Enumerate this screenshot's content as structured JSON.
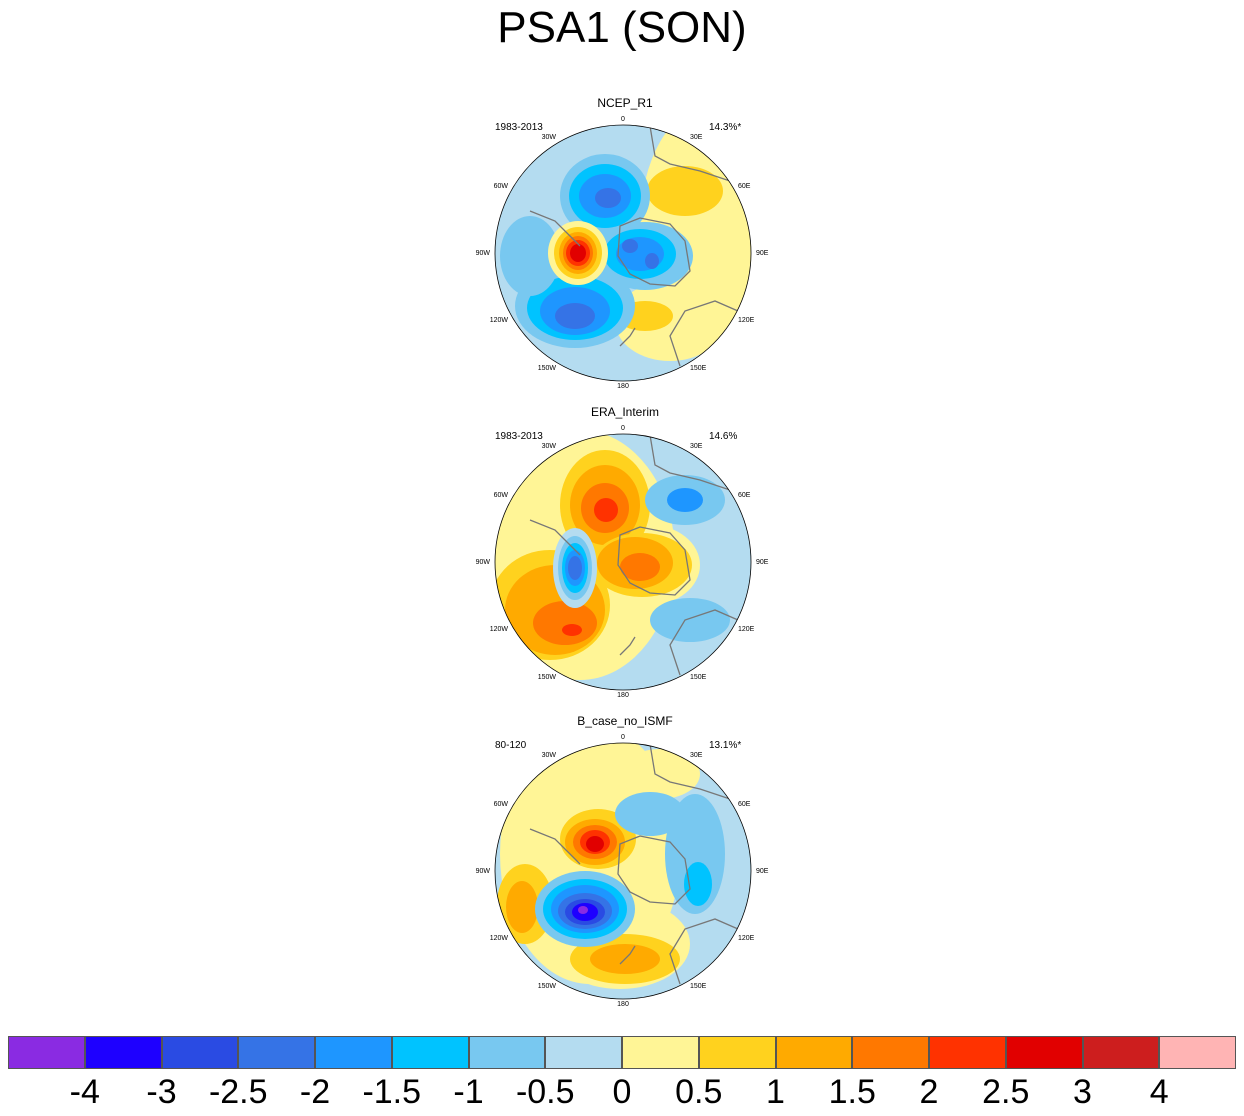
{
  "title": "PSA1 (SON)",
  "panels": [
    {
      "name": "NCEP_R1",
      "period": "1983-2013",
      "variance": "14.3%*"
    },
    {
      "name": "ERA_Interim",
      "period": "1983-2013",
      "variance": "14.6%"
    },
    {
      "name": "B_case_no_ISMF",
      "period": "80-120",
      "variance": "13.1%*"
    }
  ],
  "longitude_labels": {
    "top": "0",
    "lon_30e": "30E",
    "lon_60e": "60E",
    "lon_90e": "90E",
    "lon_120e": "120E",
    "lon_150e": "150E",
    "bottom": "180",
    "lon_150w": "150W",
    "lon_120w": "120W",
    "lon_90w": "90W",
    "lon_60w": "60W",
    "lon_30w": "30W"
  },
  "colorbar": {
    "colors": [
      "#8a2be2",
      "#1e00ff",
      "#2a4be3",
      "#3573e6",
      "#1e96ff",
      "#00c3ff",
      "#78c8f0",
      "#b4dcf0",
      "#fff596",
      "#ffd21e",
      "#ffaa00",
      "#ff7800",
      "#ff3200",
      "#e10000",
      "#cd1e1e",
      "#ffb4b4"
    ],
    "labels": [
      "-4",
      "-3",
      "-2.5",
      "-2",
      "-1.5",
      "-1",
      "-0.5",
      "0",
      "0.5",
      "1",
      "1.5",
      "2",
      "2.5",
      "3",
      "4"
    ]
  },
  "color_keys": {
    "neg4": "#8a2be2",
    "neg3": "#1e00ff",
    "neg25": "#2a4be3",
    "neg2": "#3573e6",
    "neg15": "#1e96ff",
    "neg1": "#00c3ff",
    "neg05": "#78c8f0",
    "neg0": "#b4dcf0",
    "pos0": "#fff596",
    "pos05": "#ffd21e",
    "pos1": "#ffaa00",
    "pos15": "#ff7800",
    "pos2": "#ff3200",
    "pos25": "#e10000",
    "pos3": "#cd1e1e",
    "pos4": "#ffb4b4",
    "coast": "#777777"
  }
}
